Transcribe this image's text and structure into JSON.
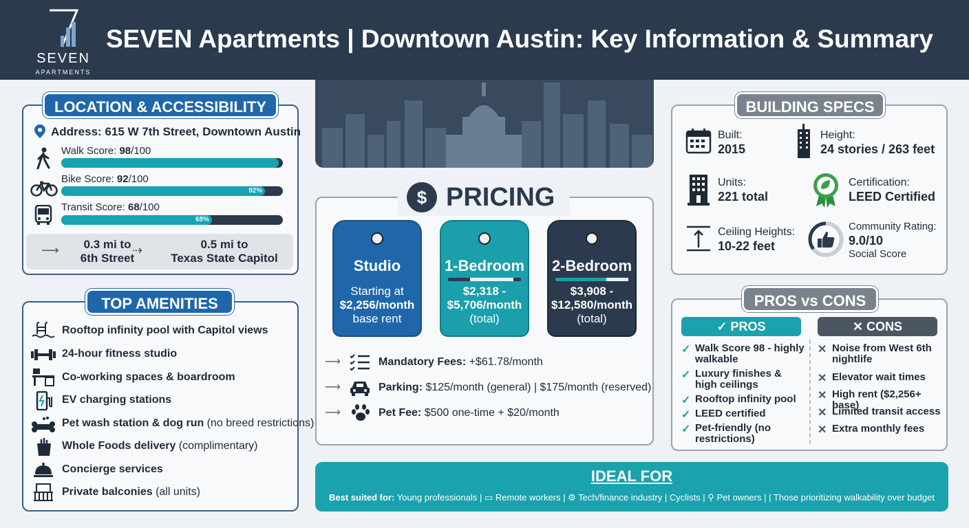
{
  "header": {
    "logo_name": "SEVEN",
    "logo_sub": "APARTMENTS",
    "title": "SEVEN Apartments | Downtown Austin: Key Information & Summary"
  },
  "location": {
    "heading": "LOCATION & ACCESSIBILITY",
    "address": "Address: 615 W 7th Street, Downtown Austin",
    "scores": [
      {
        "label": "Walk Score: ",
        "value": "98",
        "suffix": "/100",
        "fraction": 0.98,
        "pct_text": ""
      },
      {
        "label": "Bike Score: ",
        "value": "92",
        "suffix": "/100",
        "fraction": 0.92,
        "pct_text": "92%"
      },
      {
        "label": "Transit Score: ",
        "value": "68",
        "suffix": "/100",
        "fraction": 0.68,
        "pct_text": "68%"
      }
    ],
    "distances": [
      {
        "line1": "0.3 mi to",
        "line2": "6th Street"
      },
      {
        "line1": "0.5 mi to",
        "line2": "Texas State Capitol"
      }
    ]
  },
  "amenities": {
    "heading": "TOP AMENITIES",
    "items": [
      {
        "icon": "pool-icon",
        "bold": "Rooftop infinity pool with Capitol views",
        "note": ""
      },
      {
        "icon": "dumbbell-icon",
        "bold": "24-hour fitness studio",
        "note": ""
      },
      {
        "icon": "desk-icon",
        "bold": "Co-working spaces & boardroom",
        "note": ""
      },
      {
        "icon": "ev-charger-icon",
        "bold": "EV charging stations",
        "note": ""
      },
      {
        "icon": "dog-bone-icon",
        "bold": "Pet wash station & dog run",
        "note": " (no breed restrictions)"
      },
      {
        "icon": "grocery-bag-icon",
        "bold": "Whole Foods delivery",
        "note": " (complimentary)"
      },
      {
        "icon": "concierge-bell-icon",
        "bold": "Concierge services",
        "note": ""
      },
      {
        "icon": "balcony-icon",
        "bold": "Private balconies",
        "note": " (all units)"
      }
    ]
  },
  "pricing": {
    "heading": "PRICING",
    "tags": [
      {
        "name": "Studio",
        "lines": [
          "Starting at",
          "$2,256/month",
          "base rent"
        ],
        "color": "#1f67aa"
      },
      {
        "name": "1-Bedroom",
        "lines": [
          "$2,318 -",
          "$5,706/month",
          "(total)"
        ],
        "color": "#1a9fab"
      },
      {
        "name": "2-Bedroom",
        "lines": [
          "$3,908 -",
          "$12,580/month",
          "(total)"
        ],
        "color": "#2b3a4d"
      }
    ],
    "fees": [
      {
        "icon": "checklist-icon",
        "label": "Mandatory Fees:",
        "value": " +$61.78/month"
      },
      {
        "icon": "car-icon",
        "label": "Parking:",
        "value": " $125/month (general) | $175/month (reserved)"
      },
      {
        "icon": "paw-icon",
        "label": "Pet Fee:",
        "value": " $500 one-time + $20/month"
      }
    ]
  },
  "specs": {
    "heading": "BUILDING SPECS",
    "items": [
      {
        "icon": "calendar-icon",
        "label": "Built:",
        "value": "2015",
        "extra": ""
      },
      {
        "icon": "skyscraper-icon",
        "label": "Height:",
        "value": "24 stories / 263 feet",
        "extra": ""
      },
      {
        "icon": "building-icon",
        "label": "Units:",
        "value": "221 total",
        "extra": ""
      },
      {
        "icon": "leed-badge-icon",
        "label": "Certification:",
        "value": "LEED Certified",
        "extra": ""
      },
      {
        "icon": "ceiling-height-icon",
        "label": "Ceiling Heights:",
        "value": "10-22 feet",
        "extra": ""
      },
      {
        "icon": "thumbs-up-icon",
        "label": "Community Rating:",
        "value": "9.0/10",
        "extra": "Social Score"
      }
    ]
  },
  "pros_cons": {
    "heading": "PROS vs CONS",
    "pros_title": "PROS",
    "cons_title": "CONS",
    "pros": [
      "Walk Score 98 - highly walkable",
      "Luxury finishes & high ceilings",
      "Rooftop infinity pool",
      "LEED certified",
      "Pet-friendly (no restrictions)"
    ],
    "cons": [
      "Noise from West 6th nightlife",
      "Elevator wait times",
      "High rent ($2,256+ base)",
      "Limited transit access",
      "Extra monthly fees"
    ]
  },
  "ideal": {
    "heading": "IDEAL FOR",
    "lead": "Best suited for:",
    "items": [
      "Young professionals",
      "Remote workers",
      "Tech/finance industry",
      "Cyclists",
      "Pet owners",
      "Those prioritizing walkability over budget"
    ]
  },
  "colors": {
    "navy": "#2b3a4d",
    "blue": "#1f67aa",
    "teal": "#1aa2ad",
    "gray": "#7a838d"
  }
}
